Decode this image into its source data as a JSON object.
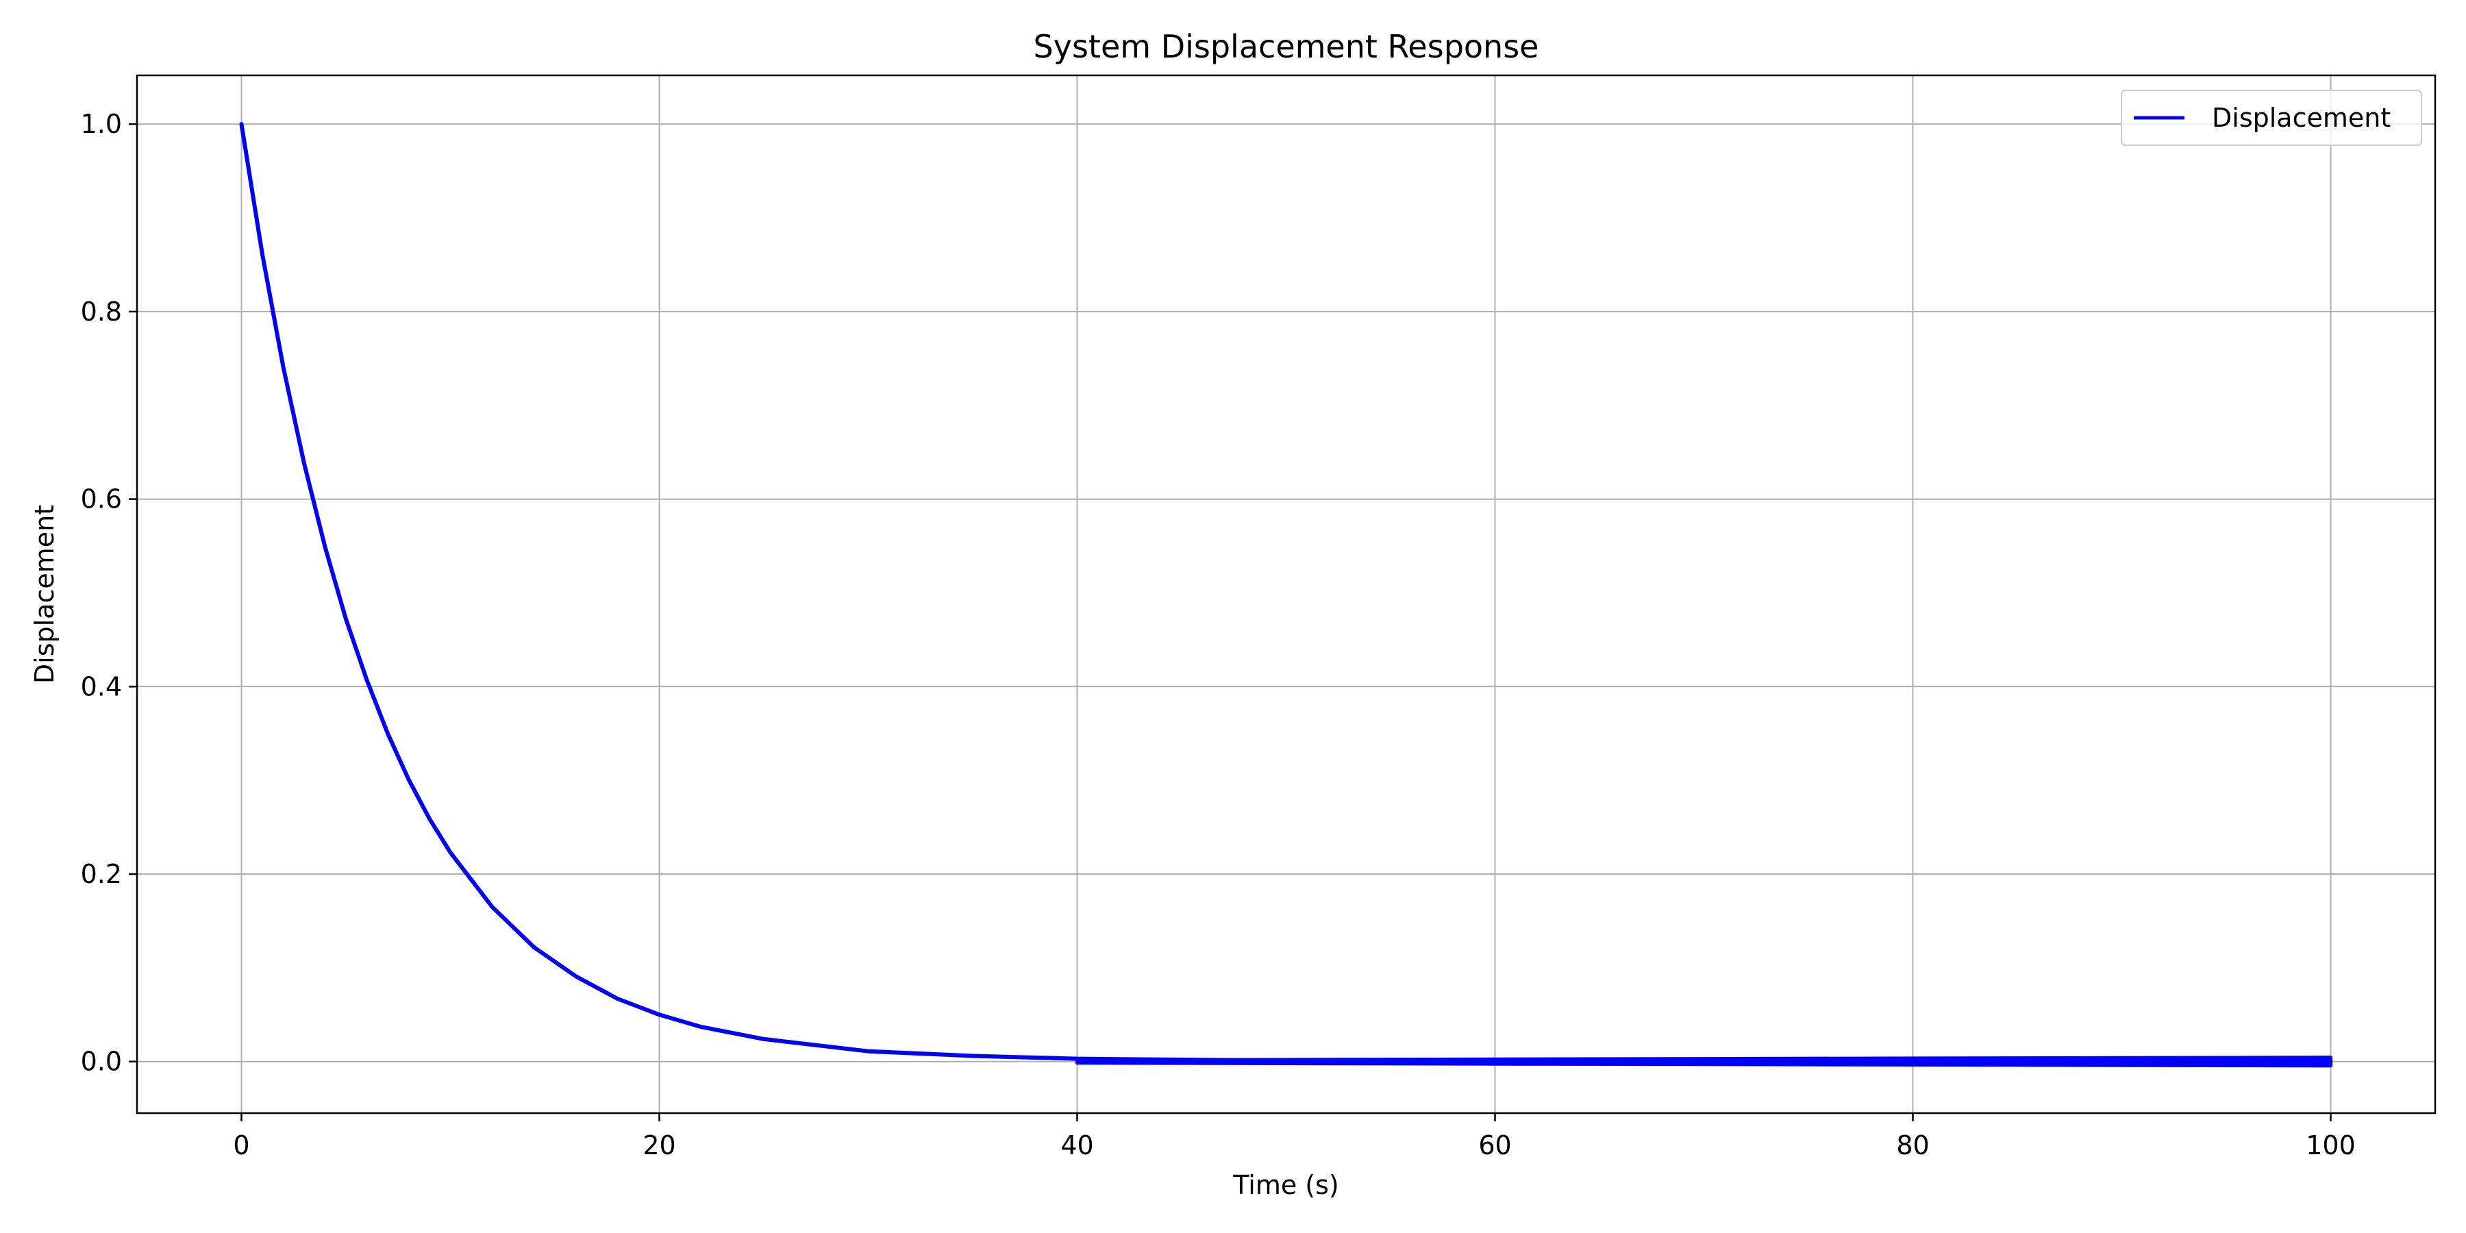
{
  "chart_data": {
    "type": "line",
    "title": "System Displacement Response",
    "xlabel": "Time (s)",
    "ylabel": "Displacement",
    "xlim": [
      -5,
      105
    ],
    "ylim": [
      -0.055,
      1.052
    ],
    "xticks": [
      0,
      20,
      40,
      60,
      80,
      100
    ],
    "yticks": [
      0.0,
      0.2,
      0.4,
      0.6,
      0.8,
      1.0
    ],
    "xtick_labels": [
      "0",
      "20",
      "40",
      "60",
      "80",
      "100"
    ],
    "ytick_labels": [
      "0.0",
      "0.2",
      "0.4",
      "0.6",
      "0.8",
      "1.0"
    ],
    "grid": true,
    "legend_position": "top-right",
    "series": [
      {
        "name": "Displacement",
        "color": "#0000ff",
        "x": [
          0,
          1,
          2,
          3,
          4,
          5,
          6,
          7,
          8,
          9,
          10,
          12,
          14,
          16,
          18,
          20,
          22,
          25,
          30,
          35,
          40,
          45,
          50,
          60,
          70,
          80,
          90,
          100
        ],
        "y": [
          1.0,
          0.861,
          0.741,
          0.638,
          0.549,
          0.472,
          0.407,
          0.35,
          0.301,
          0.259,
          0.223,
          0.165,
          0.122,
          0.091,
          0.067,
          0.05,
          0.037,
          0.024,
          0.011,
          0.006,
          0.003,
          0.002,
          0.001,
          0.0,
          0.0,
          0.0,
          0.0,
          0.0
        ],
        "oscillation_band": {
          "x": [
            40,
            50,
            60,
            70,
            80,
            90,
            100
          ],
          "amplitude": [
            0.0015,
            0.002,
            0.0025,
            0.003,
            0.0035,
            0.004,
            0.0045
          ]
        }
      }
    ]
  }
}
